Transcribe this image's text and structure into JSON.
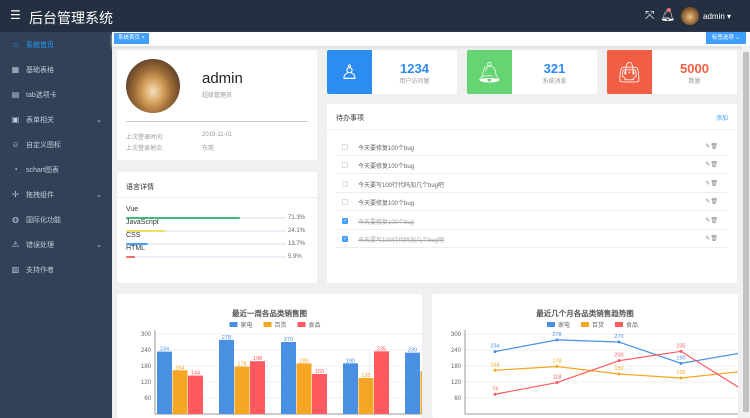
{
  "header": {
    "title": "后台管理系统",
    "fullscreen_icon": "fullscreen-icon",
    "bell_icon": "bell-icon",
    "username": "admin"
  },
  "sidebar": {
    "items": [
      {
        "label": "系统首页",
        "icon": "home-icon",
        "active": true
      },
      {
        "label": "基础表格",
        "icon": "grid-icon"
      },
      {
        "label": "tab选项卡",
        "icon": "copy-icon"
      },
      {
        "label": "表单相关",
        "icon": "calendar-icon",
        "expandable": true
      },
      {
        "label": "自定义图标",
        "icon": "emoji-icon"
      },
      {
        "label": "schart图表",
        "icon": "pie-chart-icon"
      },
      {
        "label": "拖拽组件",
        "icon": "move-icon",
        "expandable": true
      },
      {
        "label": "国际化功能",
        "icon": "globe-icon"
      },
      {
        "label": "错误处理",
        "icon": "warning-icon",
        "expandable": true
      },
      {
        "label": "支持作者",
        "icon": "gift-icon"
      }
    ]
  },
  "tags": {
    "items": [
      {
        "label": "系统首页"
      }
    ],
    "options_label": "标签选项"
  },
  "user_card": {
    "name": "admin",
    "role": "超级管理员",
    "last_login_time_label": "上次登录时间:",
    "last_login_time": "2019-11-01",
    "last_login_place_label": "上次登录地点:",
    "last_login_place": "东莞"
  },
  "languages": {
    "title": "语言详情",
    "items": [
      {
        "name": "Vue",
        "percent": 71.3,
        "label": "71.3%",
        "color": "#42b983"
      },
      {
        "name": "JavaScript",
        "percent": 24.1,
        "label": "24.1%",
        "color": "#f1e05a"
      },
      {
        "name": "CSS",
        "percent": 13.7,
        "label": "13.7%",
        "color": "#409eff"
      },
      {
        "name": "HTML",
        "percent": 5.9,
        "label": "5.9%",
        "color": "#f56c6c"
      }
    ]
  },
  "stats": [
    {
      "value": "1234",
      "label": "用户访问量",
      "color": "#2d8cf0",
      "num_color": "#2d8cf0",
      "icon": "user-icon"
    },
    {
      "value": "321",
      "label": "系统消息",
      "color": "#64d572",
      "num_color": "#2d8cf0",
      "icon": "bell-icon"
    },
    {
      "value": "5000",
      "label": "数量",
      "color": "#f25e43",
      "num_color": "#f25e43",
      "icon": "shopping-bag-icon"
    }
  ],
  "todo": {
    "title": "待办事项",
    "add_label": "添加",
    "items": [
      {
        "text": "今天要修复100个bug",
        "done": false
      },
      {
        "text": "今天要修复100个bug",
        "done": false
      },
      {
        "text": "今天要写100行代码加几个bug吧",
        "done": false
      },
      {
        "text": "今天要修复100个bug",
        "done": false
      },
      {
        "text": "今天要修复100个bug",
        "done": true
      },
      {
        "text": "今天要写100行代码加几个bug吧",
        "done": true
      }
    ]
  },
  "chart_data": [
    {
      "type": "bar",
      "title": "最近一周各品类销售图",
      "ylim": [
        0,
        300
      ],
      "yticks": [
        60,
        120,
        180,
        240,
        300
      ],
      "grid": true,
      "legend": "top",
      "series": [
        {
          "name": "家电",
          "color": "#4a90e2",
          "values": [
            234,
            278,
            270,
            190,
            230
          ]
        },
        {
          "name": "百货",
          "color": "#f5a623",
          "values": [
            164,
            178,
            190,
            135,
            160
          ]
        },
        {
          "name": "食品",
          "color": "#ff5a5f",
          "values": [
            144,
            198,
            150,
            235,
            null
          ]
        }
      ]
    },
    {
      "type": "line",
      "title": "最近几个月各品类销售趋势图",
      "ylim": [
        0,
        300
      ],
      "yticks": [
        60,
        120,
        180,
        240,
        300
      ],
      "grid": true,
      "legend": "top",
      "series": [
        {
          "name": "家电",
          "color": "#4a90e2",
          "values": [
            234,
            278,
            270,
            190,
            230
          ]
        },
        {
          "name": "百货",
          "color": "#f5a623",
          "values": [
            164,
            178,
            150,
            135,
            160
          ]
        },
        {
          "name": "食品",
          "color": "#ff5a5f",
          "values": [
            74,
            118,
            200,
            235,
            90
          ]
        }
      ]
    }
  ]
}
